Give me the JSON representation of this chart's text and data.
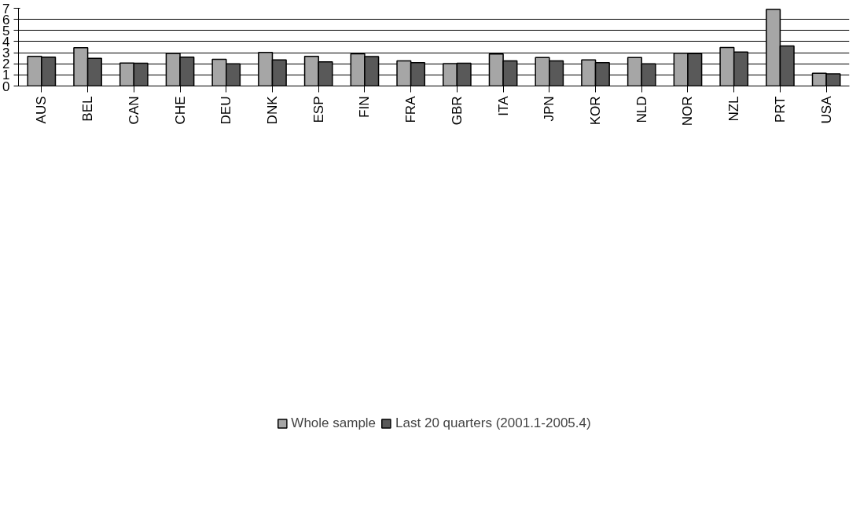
{
  "chart_data": {
    "type": "bar",
    "categories": [
      "AUS",
      "BEL",
      "CAN",
      "CHE",
      "DEU",
      "DNK",
      "ESP",
      "FIN",
      "FRA",
      "GBR",
      "ITA",
      "JPN",
      "KOR",
      "NLD",
      "NOR",
      "NZL",
      "PRT",
      "USA"
    ],
    "series": [
      {
        "name": "Whole sample",
        "color": "#a6a6a6",
        "values": [
          2.67,
          3.44,
          2.07,
          2.93,
          2.4,
          3.03,
          2.67,
          2.9,
          2.26,
          2.02,
          2.88,
          2.57,
          2.35,
          2.57,
          2.96,
          3.46,
          6.9,
          1.15
        ]
      },
      {
        "name": "Last 20 quarters (2001.1-2005.4)",
        "color": "#595959",
        "values": [
          2.6,
          2.5,
          2.05,
          2.6,
          2.0,
          2.35,
          2.18,
          2.65,
          2.1,
          2.05,
          2.26,
          2.26,
          2.1,
          2.0,
          2.91,
          3.05,
          3.6,
          1.1
        ]
      }
    ],
    "ylim": [
      0,
      7
    ],
    "yticks": [
      0,
      1,
      2,
      3,
      4,
      5,
      6,
      7
    ],
    "grid": "y",
    "legend": "bottom"
  }
}
